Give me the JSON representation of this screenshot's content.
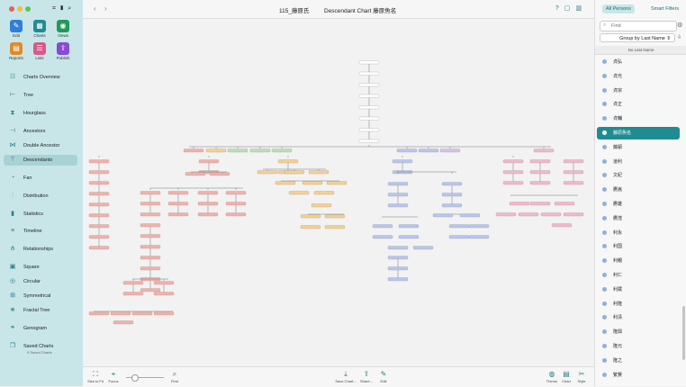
{
  "window": {
    "doc_title": "115_藤原氏",
    "chart_title": "Descendant Chart 藤原魚名"
  },
  "toolbar": [
    {
      "label": "Edit",
      "icon": "pencil-icon",
      "color": "#2f7fd6"
    },
    {
      "label": "Charts",
      "icon": "charts-icon",
      "color": "#1f8c93"
    },
    {
      "label": "Views",
      "icon": "eye-icon",
      "color": "#1f9a5a"
    },
    {
      "label": "Reports",
      "icon": "reports-icon",
      "color": "#e08a2a"
    },
    {
      "label": "Lists",
      "icon": "lists-icon",
      "color": "#d65a8a"
    },
    {
      "label": "Publish",
      "icon": "publish-icon",
      "color": "#8a4ad6"
    }
  ],
  "nav": [
    {
      "label": "Charts Overview",
      "icon": "charts-overview-icon"
    },
    {
      "label": "Tree",
      "icon": "tree-icon"
    },
    {
      "label": "Hourglass",
      "icon": "hourglass-icon"
    },
    {
      "label": "Ancestors",
      "icon": "ancestors-icon"
    },
    {
      "label": "Double Ancestor",
      "icon": "double-ancestor-icon"
    },
    {
      "label": "Descendants",
      "icon": "descendants-icon"
    },
    {
      "label": "Fan",
      "icon": "fan-icon"
    },
    {
      "label": "Distribution",
      "icon": "distribution-icon"
    },
    {
      "label": "Statistics",
      "icon": "statistics-icon"
    },
    {
      "label": "Timeline",
      "icon": "timeline-icon"
    },
    {
      "label": "Relationships",
      "icon": "relationships-icon"
    },
    {
      "label": "Square",
      "icon": "square-icon"
    },
    {
      "label": "Circular",
      "icon": "circular-icon"
    },
    {
      "label": "Symmetrical",
      "icon": "symmetrical-icon"
    },
    {
      "label": "Fractal Tree",
      "icon": "fractal-tree-icon"
    },
    {
      "label": "Genogram",
      "icon": "genogram-icon"
    },
    {
      "label": "Saved Charts",
      "icon": "saved-charts-icon"
    }
  ],
  "saved_sub": "0 Saved Charts",
  "bottom": {
    "size_to_fit": "Size to Fit",
    "focus": "Focus",
    "find": "Find",
    "save_chart": "Save Chart...",
    "share": "Share...",
    "edit": "Edit",
    "theme": "Theme",
    "chart": "Chart",
    "style": "Style"
  },
  "right": {
    "seg_all": "All Persons",
    "seg_smart": "Smart Filters",
    "search_placeholder": "Find",
    "group_by": "Group by Last Name ⇕",
    "section": "No Last Name",
    "persons": [
      "貞弘",
      "貞光",
      "貞宗",
      "貞正",
      "貞輔",
      "藤原魚名",
      "藤嗣",
      "道利",
      "文紀",
      "鷹嵩",
      "鷹雄",
      "鷹茂",
      "利永",
      "利国",
      "利親",
      "利仁",
      "利蔵",
      "利隆",
      "利清",
      "隆興",
      "隆元",
      "隆之",
      "繁賢"
    ]
  },
  "colors": {
    "accent": "#1f8c93",
    "red": "#f4b0a8",
    "orange": "#f7cf8e",
    "green": "#b6e3b0",
    "blue": "#b7c6f0",
    "pink": "#f3b7cc",
    "purple": "#d5c0ef"
  }
}
